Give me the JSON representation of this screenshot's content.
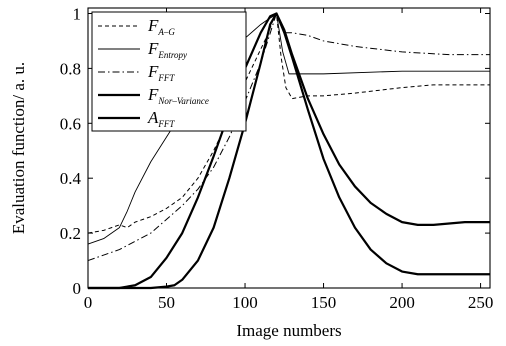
{
  "chart_data": {
    "type": "line",
    "xlabel": "Image numbers",
    "ylabel": "Evaluation function/ a. u.",
    "xlim": [
      0,
      256
    ],
    "ylim": [
      0,
      1.02
    ],
    "xticks": [
      "0",
      "50",
      "100",
      "150",
      "200",
      "250"
    ],
    "yticks": [
      "0",
      "0.2",
      "0.4",
      "0.6",
      "0.8",
      "1"
    ],
    "xtick_values": [
      0,
      50,
      100,
      150,
      200,
      250
    ],
    "ytick_values": [
      0,
      0.2,
      0.4,
      0.6,
      0.8,
      1
    ],
    "grid": false,
    "legend_position": "top-left",
    "series": [
      {
        "name": "F",
        "name_sub": "A–G",
        "style": "dashed",
        "color": "#000000",
        "x": [
          0,
          10,
          20,
          25,
          30,
          40,
          50,
          60,
          70,
          80,
          90,
          100,
          110,
          115,
          118,
          120,
          123,
          126,
          130,
          140,
          150,
          170,
          200,
          220,
          256
        ],
        "y": [
          0.2,
          0.21,
          0.23,
          0.22,
          0.24,
          0.26,
          0.29,
          0.33,
          0.4,
          0.5,
          0.62,
          0.75,
          0.87,
          0.93,
          0.98,
          1.0,
          0.84,
          0.73,
          0.69,
          0.7,
          0.7,
          0.71,
          0.73,
          0.74,
          0.74
        ]
      },
      {
        "name": "F",
        "name_sub": "Entropy",
        "style": "solid-thin",
        "color": "#000000",
        "x": [
          0,
          10,
          20,
          25,
          30,
          40,
          50,
          60,
          70,
          80,
          90,
          100,
          110,
          115,
          118,
          120,
          124,
          128,
          135,
          150,
          200,
          256
        ],
        "y": [
          0.16,
          0.18,
          0.22,
          0.28,
          0.35,
          0.46,
          0.55,
          0.64,
          0.72,
          0.79,
          0.85,
          0.91,
          0.96,
          0.98,
          0.99,
          1.0,
          0.86,
          0.78,
          0.78,
          0.78,
          0.79,
          0.79
        ]
      },
      {
        "name": "F",
        "name_sub": "FFT",
        "style": "dash-dot",
        "color": "#000000",
        "x": [
          0,
          10,
          20,
          30,
          40,
          50,
          60,
          70,
          80,
          90,
          100,
          110,
          115,
          120,
          125,
          130,
          140,
          150,
          170,
          200,
          230,
          256
        ],
        "y": [
          0.1,
          0.12,
          0.14,
          0.17,
          0.2,
          0.25,
          0.3,
          0.36,
          0.44,
          0.55,
          0.68,
          0.82,
          0.91,
          1.0,
          0.93,
          0.93,
          0.92,
          0.9,
          0.88,
          0.86,
          0.85,
          0.85
        ]
      },
      {
        "name": "F",
        "name_sub": "Nor–Variance",
        "style": "solid-bold",
        "color": "#000000",
        "x": [
          0,
          10,
          20,
          30,
          40,
          50,
          60,
          70,
          80,
          90,
          100,
          110,
          116,
          120,
          125,
          130,
          140,
          150,
          160,
          170,
          180,
          190,
          200,
          210,
          220,
          240,
          256
        ],
        "y": [
          0,
          0,
          0,
          0.01,
          0.04,
          0.11,
          0.2,
          0.33,
          0.48,
          0.64,
          0.8,
          0.93,
          0.99,
          1.0,
          0.94,
          0.85,
          0.69,
          0.56,
          0.45,
          0.37,
          0.31,
          0.27,
          0.24,
          0.23,
          0.23,
          0.24,
          0.24
        ]
      },
      {
        "name": "A",
        "name_sub": "FFT",
        "style": "solid-bold",
        "color": "#000000",
        "x": [
          0,
          20,
          40,
          50,
          55,
          60,
          70,
          80,
          90,
          100,
          110,
          116,
          120,
          125,
          130,
          140,
          150,
          160,
          170,
          180,
          190,
          200,
          210,
          220,
          240,
          256
        ],
        "y": [
          0,
          0,
          0,
          0.005,
          0.01,
          0.03,
          0.1,
          0.22,
          0.4,
          0.6,
          0.82,
          0.96,
          1.0,
          0.93,
          0.84,
          0.65,
          0.47,
          0.33,
          0.22,
          0.14,
          0.09,
          0.06,
          0.05,
          0.05,
          0.05,
          0.05
        ]
      }
    ]
  }
}
